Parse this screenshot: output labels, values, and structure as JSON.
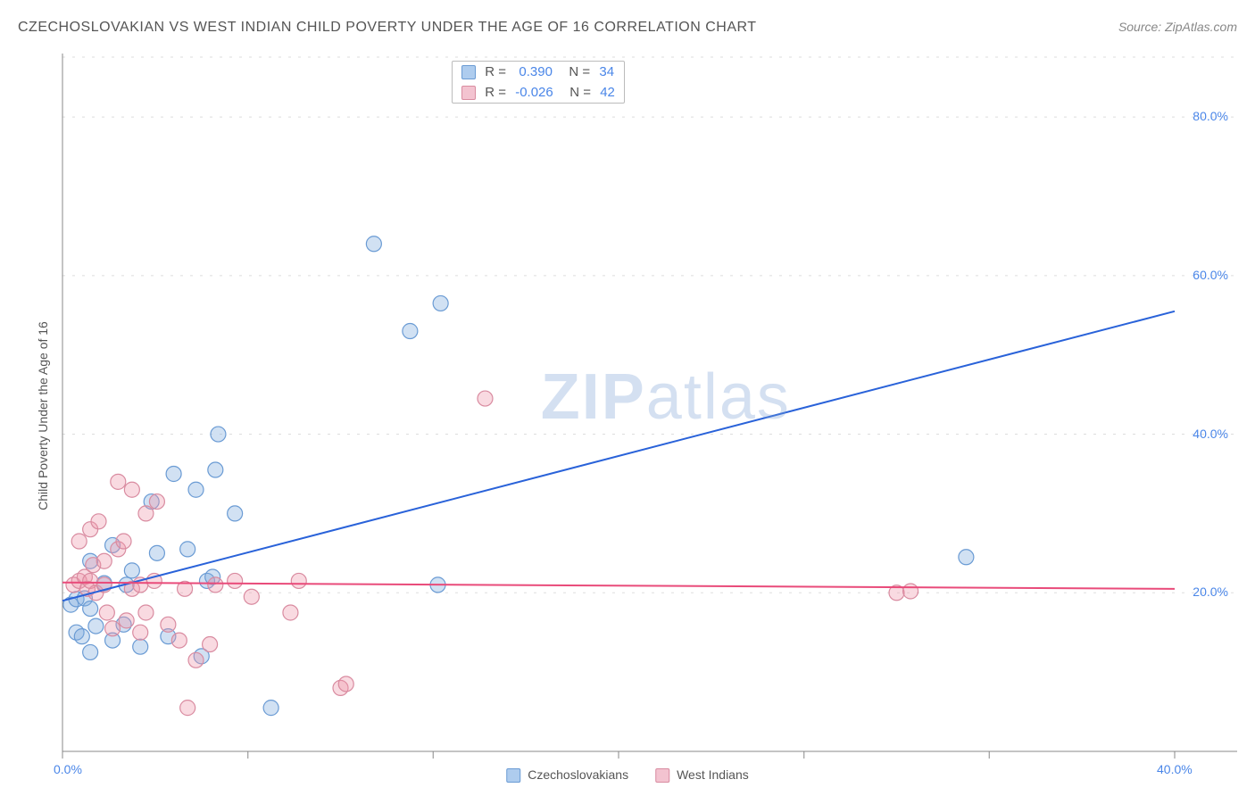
{
  "title": "CZECHOSLOVAKIAN VS WEST INDIAN CHILD POVERTY UNDER THE AGE OF 16 CORRELATION CHART",
  "source": "Source: ZipAtlas.com",
  "ylabel": "Child Poverty Under the Age of 16",
  "watermark": {
    "bold": "ZIP",
    "light": "atlas"
  },
  "chart": {
    "type": "scatter-with-regression",
    "background_color": "#ffffff",
    "grid_color": "#dddddd",
    "grid_dash": "3,8",
    "axis_color": "#888888",
    "x_domain": [
      0,
      40
    ],
    "y_domain": [
      0,
      88
    ],
    "x_ticks": [
      0,
      40
    ],
    "x_tick_labels": [
      "0.0%",
      "40.0%"
    ],
    "x_minor_ticks": [
      6.67,
      13.33,
      20,
      26.67,
      33.33
    ],
    "y_ticks": [
      20,
      40,
      60,
      80
    ],
    "y_tick_labels": [
      "20.0%",
      "40.0%",
      "60.0%",
      "80.0%"
    ],
    "tick_label_color": "#4a86e8",
    "tick_label_fontsize": 14,
    "marker_radius": 8.5,
    "marker_stroke_width": 1.2,
    "series": [
      {
        "name": "Czechoslovakians",
        "fill": "rgba(122, 168, 222, 0.35)",
        "stroke": "#6a9bd4",
        "swatch_fill": "#aeccee",
        "swatch_stroke": "#6a9bd4",
        "regression": {
          "x1": 0,
          "y1": 19.0,
          "x2": 40,
          "y2": 55.5,
          "color": "#2962d9",
          "width": 2
        },
        "correlation": {
          "r": "0.390",
          "n": "34"
        },
        "points": [
          [
            0.3,
            18.5
          ],
          [
            0.5,
            19.2
          ],
          [
            0.5,
            15.0
          ],
          [
            0.7,
            14.5
          ],
          [
            0.8,
            19.3
          ],
          [
            1.0,
            18.0
          ],
          [
            1.0,
            24.0
          ],
          [
            1.0,
            12.5
          ],
          [
            1.2,
            15.8
          ],
          [
            1.5,
            21.2
          ],
          [
            1.8,
            14.0
          ],
          [
            1.8,
            26.0
          ],
          [
            2.2,
            16.0
          ],
          [
            2.3,
            21.0
          ],
          [
            2.5,
            22.8
          ],
          [
            2.8,
            13.2
          ],
          [
            3.2,
            31.5
          ],
          [
            3.4,
            25.0
          ],
          [
            3.8,
            14.5
          ],
          [
            4.0,
            35.0
          ],
          [
            4.5,
            25.5
          ],
          [
            4.8,
            33.0
          ],
          [
            5.0,
            12.0
          ],
          [
            5.2,
            21.5
          ],
          [
            5.4,
            22.0
          ],
          [
            5.5,
            35.5
          ],
          [
            5.6,
            40.0
          ],
          [
            6.2,
            30.0
          ],
          [
            7.5,
            5.5
          ],
          [
            11.2,
            64.0
          ],
          [
            12.5,
            53.0
          ],
          [
            13.5,
            21.0
          ],
          [
            13.6,
            56.5
          ],
          [
            32.5,
            24.5
          ]
        ]
      },
      {
        "name": "West Indians",
        "fill": "rgba(238, 148, 170, 0.35)",
        "stroke": "#d98ba0",
        "swatch_fill": "#f3c3d0",
        "swatch_stroke": "#d98ba0",
        "regression": {
          "x1": 0,
          "y1": 21.3,
          "x2": 40,
          "y2": 20.5,
          "color": "#e94b7a",
          "width": 2
        },
        "correlation": {
          "r": "-0.026",
          "n": "42"
        },
        "points": [
          [
            0.4,
            21.0
          ],
          [
            0.6,
            21.5
          ],
          [
            0.6,
            26.5
          ],
          [
            0.8,
            22.0
          ],
          [
            0.9,
            20.5
          ],
          [
            1.0,
            28.0
          ],
          [
            1.0,
            21.5
          ],
          [
            1.1,
            23.5
          ],
          [
            1.2,
            20.0
          ],
          [
            1.3,
            29.0
          ],
          [
            1.5,
            24.0
          ],
          [
            1.5,
            21.0
          ],
          [
            1.6,
            17.5
          ],
          [
            1.8,
            15.5
          ],
          [
            2.0,
            25.5
          ],
          [
            2.0,
            34.0
          ],
          [
            2.2,
            26.5
          ],
          [
            2.3,
            16.5
          ],
          [
            2.5,
            20.5
          ],
          [
            2.5,
            33.0
          ],
          [
            2.8,
            21.0
          ],
          [
            2.8,
            15.0
          ],
          [
            3.0,
            30.0
          ],
          [
            3.0,
            17.5
          ],
          [
            3.3,
            21.5
          ],
          [
            3.4,
            31.5
          ],
          [
            3.8,
            16.0
          ],
          [
            4.2,
            14.0
          ],
          [
            4.4,
            20.5
          ],
          [
            4.5,
            5.5
          ],
          [
            4.8,
            11.5
          ],
          [
            5.3,
            13.5
          ],
          [
            5.5,
            21.0
          ],
          [
            6.2,
            21.5
          ],
          [
            6.8,
            19.5
          ],
          [
            8.2,
            17.5
          ],
          [
            8.5,
            21.5
          ],
          [
            10.0,
            8.0
          ],
          [
            10.2,
            8.5
          ],
          [
            15.2,
            44.5
          ],
          [
            30.0,
            20.0
          ],
          [
            30.5,
            20.2
          ]
        ]
      }
    ],
    "legend_bottom": [
      {
        "label": "Czechoslovakians",
        "series": 0
      },
      {
        "label": "West Indians",
        "series": 1
      }
    ],
    "corr_box": {
      "top_offset": 8
    }
  }
}
